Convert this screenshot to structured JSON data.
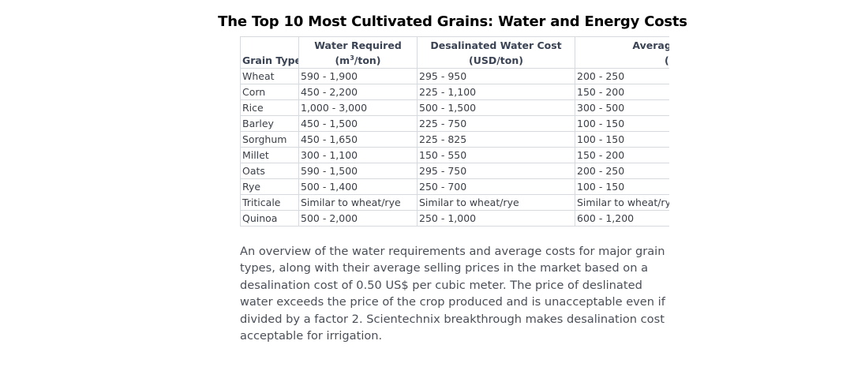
{
  "title": "The Top 10 Most Cultivated Grains: Water and Energy Costs",
  "table": {
    "headers": {
      "grain": "Grain Type",
      "water_line1": "Water Required",
      "water_line2_prefix": "(m",
      "water_line2_sup": "3",
      "water_line2_suffix": "/ton)",
      "desal_line1": "Desalinated Water Cost",
      "desal_line2": "(USD/ton)",
      "price_line1": "Average Selling Price",
      "price_line2": "(USD/ton)"
    },
    "rows": [
      [
        "Wheat",
        "590 - 1,900",
        "295 - 950",
        "200 - 250"
      ],
      [
        "Corn",
        "450 - 2,200",
        "225 - 1,100",
        "150 - 200"
      ],
      [
        "Rice",
        "1,000 - 3,000",
        "500 - 1,500",
        "300 - 500"
      ],
      [
        "Barley",
        "450 - 1,500",
        "225 - 750",
        "100 - 150"
      ],
      [
        "Sorghum",
        "450 - 1,650",
        "225 - 825",
        "100 - 150"
      ],
      [
        "Millet",
        "300 - 1,100",
        "150 - 550",
        "150 - 200"
      ],
      [
        "Oats",
        "590 - 1,500",
        "295 - 750",
        "200 - 250"
      ],
      [
        "Rye",
        "500 - 1,400",
        "250 - 700",
        "100 - 150"
      ],
      [
        "Triticale",
        "Similar to wheat/rye",
        "Similar to wheat/rye",
        "Similar to wheat/rye"
      ],
      [
        "Quinoa",
        "500 - 2,000",
        "250 - 1,000",
        "600 - 1,200"
      ]
    ]
  },
  "description": "An overview of the water requirements and average costs for major grain types, along with their average selling prices in the market based on a desalination cost of 0.50 US$ per cubic meter. The price of deslinated water exceeds the price of the crop produced and is unacceptable even if divided by a factor 2. Scientechnix breakthrough makes desalination cost acceptable for irrigation."
}
